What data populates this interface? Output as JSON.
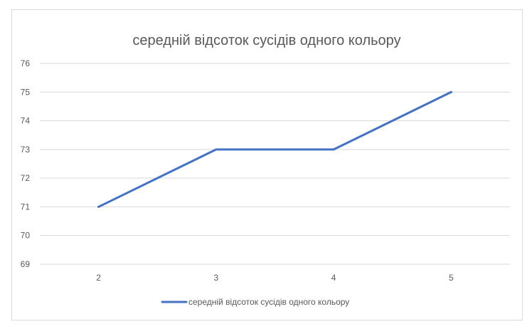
{
  "chart_data": {
    "type": "line",
    "title": "середній відсоток сусідів одного кольору",
    "categories": [
      "2",
      "3",
      "4",
      "5"
    ],
    "series": [
      {
        "name": "середній відсоток сусідів одного кольору",
        "values": [
          71,
          73,
          73,
          75
        ],
        "color": "#4472c4"
      }
    ],
    "y_ticks": [
      "69",
      "70",
      "71",
      "72",
      "73",
      "74",
      "75",
      "76"
    ],
    "ylim": [
      69,
      76
    ],
    "grid": true,
    "legend_position": "bottom"
  }
}
